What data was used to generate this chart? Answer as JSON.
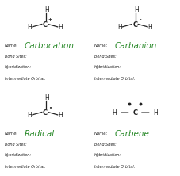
{
  "bg_color": "#ffffff",
  "border_color": "#444444",
  "text_color": "#222222",
  "green_color": "#2a8a2a",
  "cells": [
    {
      "name": "Carbocation",
      "symbol": "+",
      "has_radical": false,
      "has_lone_pair": false
    },
    {
      "name": "Carbanion",
      "symbol": "-",
      "has_radical": false,
      "has_lone_pair": false
    },
    {
      "name": "Radical",
      "symbol": "•",
      "has_radical": false,
      "has_lone_pair": false
    },
    {
      "name": "Carbene",
      "symbol": "",
      "has_radical": false,
      "has_lone_pair": true
    }
  ],
  "field_labels": [
    "Bond Sites:",
    "Hybridization:",
    "Intermediate Orbital:"
  ]
}
